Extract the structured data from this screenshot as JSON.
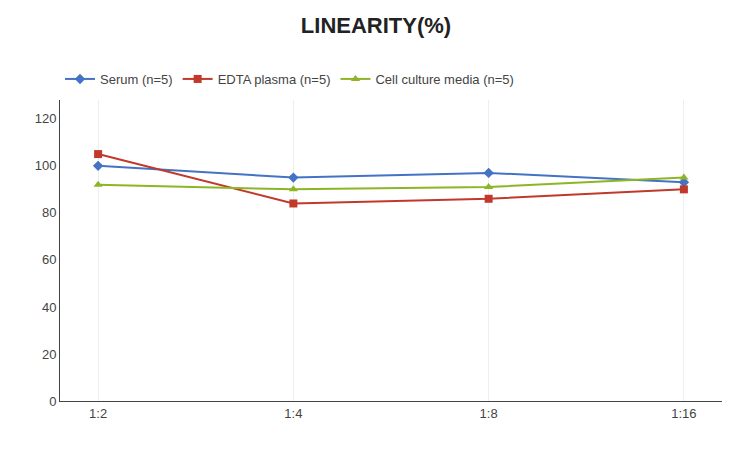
{
  "chart_data": {
    "type": "line",
    "title": "LINEARITY(%)",
    "categories": [
      "1:2",
      "1:4",
      "1:8",
      "1:16"
    ],
    "series": [
      {
        "name": "Serum (n=5)",
        "color": "#4472C4",
        "marker": "diamond",
        "values": [
          100,
          95,
          97,
          93
        ]
      },
      {
        "name": "EDTA plasma (n=5)",
        "color": "#C0392B",
        "marker": "square",
        "values": [
          105,
          84,
          86,
          90
        ]
      },
      {
        "name": "Cell culture media (n=5)",
        "color": "#8DB526",
        "marker": "triangle",
        "values": [
          92,
          90,
          91,
          95
        ]
      }
    ],
    "ylim": [
      0,
      128
    ],
    "yticks": [
      0,
      20,
      40,
      60,
      80,
      100,
      120
    ],
    "grid": "x",
    "legend": "top-left"
  }
}
